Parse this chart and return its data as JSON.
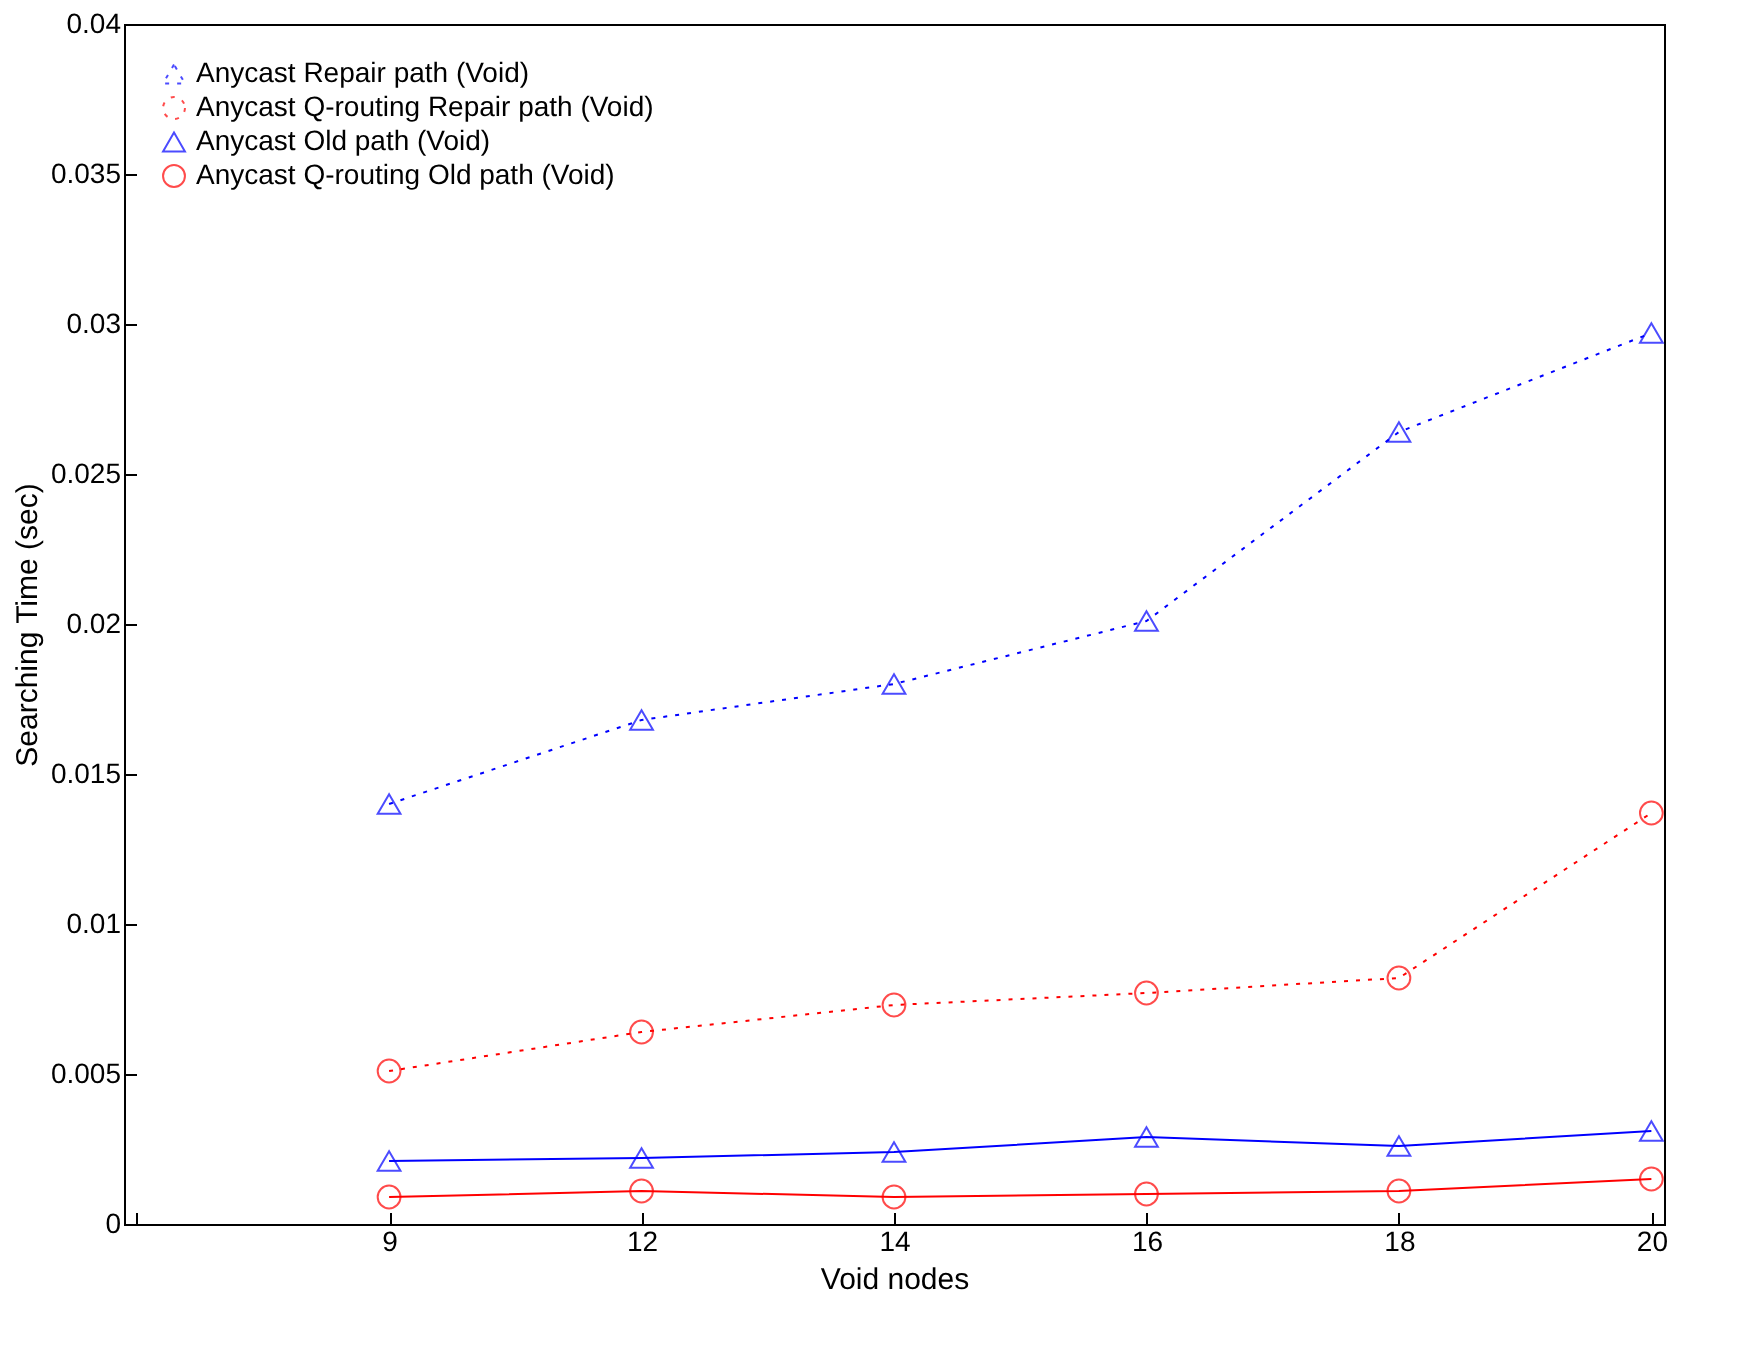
{
  "chart_data": {
    "type": "line",
    "xlabel": "Void nodes",
    "ylabel": "Searching Time (sec)",
    "categories": [
      null,
      "9",
      "12",
      "14",
      "16",
      "18",
      "20"
    ],
    "ylim": [
      0,
      0.04
    ],
    "yticks": [
      0,
      0.005,
      0.01,
      0.015,
      0.02,
      0.025,
      0.03,
      0.035,
      0.04
    ],
    "grid": false,
    "legend": "top left",
    "series": [
      {
        "name": "Anycast Repair path (Void)",
        "color": "#0000ff",
        "marker": "triangle",
        "line_style": "dotted",
        "values": [
          null,
          0.014,
          0.0168,
          0.018,
          0.0201,
          0.0264,
          0.0297
        ]
      },
      {
        "name": "Anycast Q-routing Repair path (Void)",
        "color": "#ff0000",
        "marker": "circle",
        "line_style": "dotted",
        "values": [
          null,
          0.0051,
          0.0064,
          0.0073,
          0.0077,
          0.0082,
          0.0137
        ]
      },
      {
        "name": "Anycast Old path (Void)",
        "color": "#0000ff",
        "marker": "triangle",
        "line_style": "solid",
        "values": [
          null,
          0.0021,
          0.0022,
          0.0024,
          0.0029,
          0.0026,
          0.0031
        ]
      },
      {
        "name": "Anycast Q-routing Old path (Void)",
        "color": "#ff0000",
        "marker": "circle",
        "line_style": "solid",
        "values": [
          null,
          0.0009,
          0.0011,
          0.0009,
          0.001,
          0.0011,
          0.0015
        ]
      }
    ]
  }
}
